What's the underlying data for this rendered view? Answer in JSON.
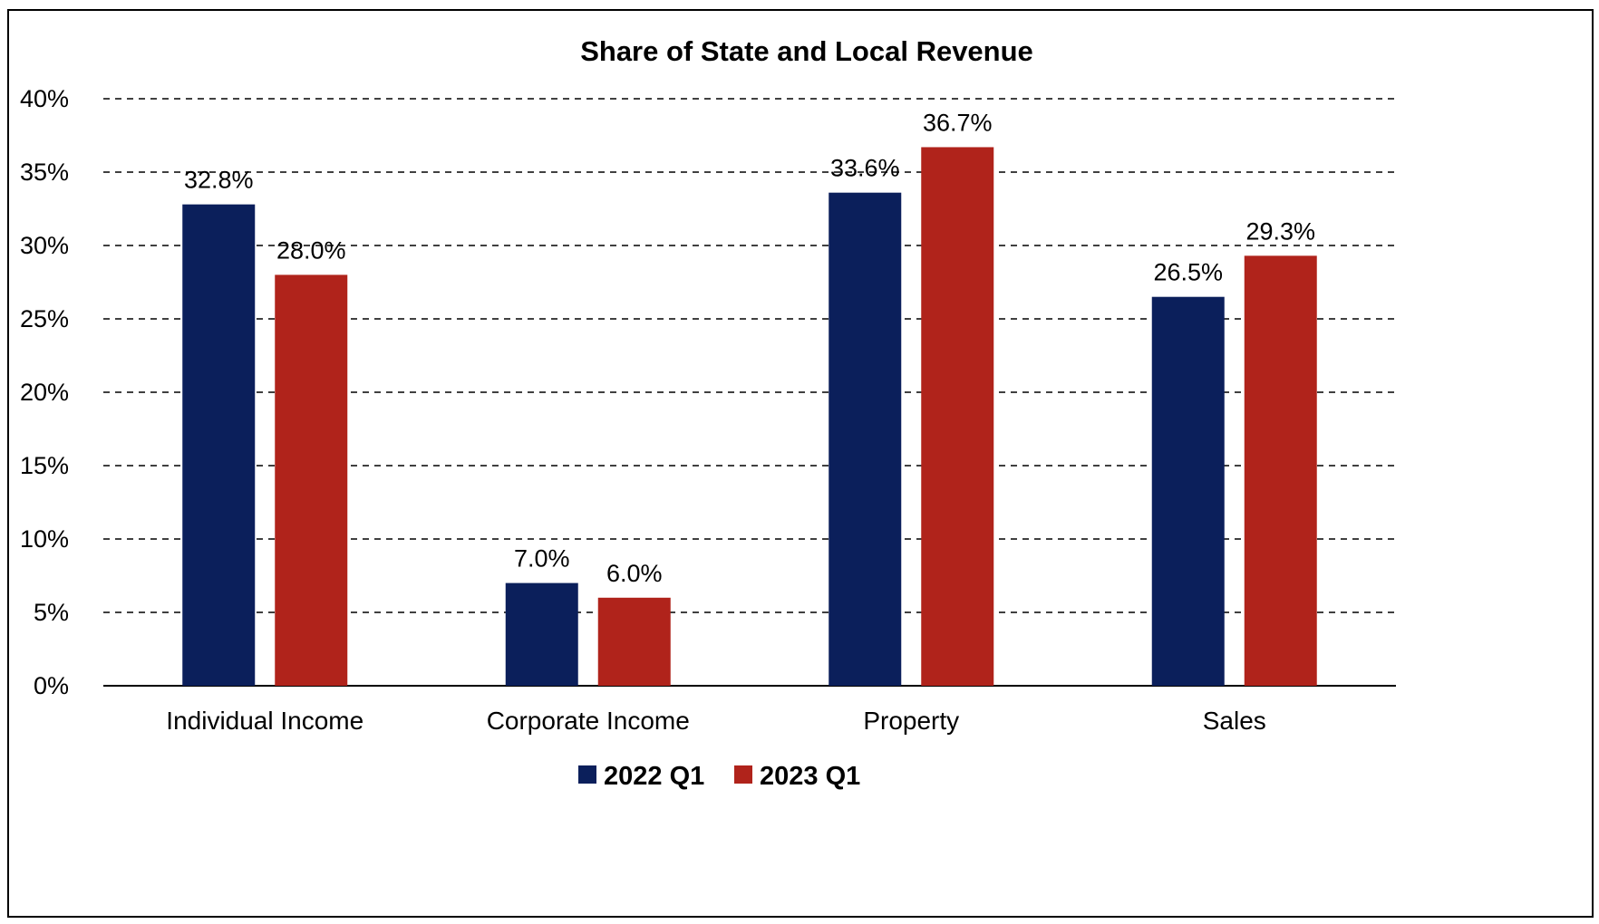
{
  "chart_data": {
    "type": "bar",
    "title": "Share of State and Local Revenue",
    "categories": [
      "Individual Income",
      "Corporate Income",
      "Property",
      "Sales"
    ],
    "series": [
      {
        "name": "2022 Q1",
        "color": "#0b1f5b",
        "values": [
          32.8,
          7.0,
          33.6,
          26.5
        ],
        "labels": [
          "32.8%",
          "7.0%",
          "33.6%",
          "26.5%"
        ]
      },
      {
        "name": "2023 Q1",
        "color": "#b0231b",
        "values": [
          28.0,
          6.0,
          36.7,
          29.3
        ],
        "labels": [
          "28.0%",
          "6.0%",
          "36.7%",
          "29.3%"
        ]
      }
    ],
    "ylim": [
      0,
      40
    ],
    "yticks": [
      "0%",
      "5%",
      "10%",
      "15%",
      "20%",
      "25%",
      "30%",
      "35%",
      "40%"
    ],
    "xlabel": "",
    "ylabel": "",
    "grid": true,
    "legend": "bottom-center"
  }
}
